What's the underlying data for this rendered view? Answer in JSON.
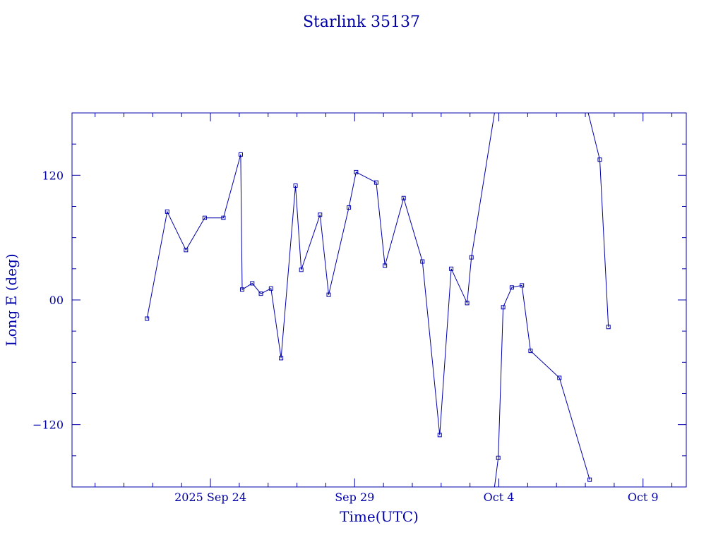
{
  "chart_data": {
    "type": "line",
    "title": "Starlink 35137",
    "xlabel": "Time(UTC)",
    "ylabel": "Long E (deg)",
    "color": "#0000aa",
    "x_unit": "days (2025 Sep 24 = 0)",
    "xlim": [
      -4.8,
      16.5
    ],
    "ylim": [
      -180,
      180
    ],
    "x_ticks": [
      {
        "value": 0,
        "label": "2025 Sep 24"
      },
      {
        "value": 5,
        "label": "Sep 29"
      },
      {
        "value": 10,
        "label": "Oct  4"
      },
      {
        "value": 15,
        "label": "Oct  9"
      }
    ],
    "y_ticks": [
      {
        "value": 120,
        "label": "120"
      },
      {
        "value": 0,
        "label": "00"
      },
      {
        "value": -120,
        "label": "−120"
      }
    ],
    "x_minor_step": 1,
    "y_minor_step": 30,
    "grid": false,
    "segments": [
      [
        [
          -2.2,
          -18
        ],
        [
          -1.5,
          85
        ],
        [
          -0.85,
          48
        ],
        [
          -0.2,
          79
        ],
        [
          0.45,
          79
        ],
        [
          1.05,
          140
        ],
        [
          1.1,
          10
        ],
        [
          1.45,
          16
        ],
        [
          1.75,
          6
        ],
        [
          2.1,
          11
        ],
        [
          2.45,
          -56
        ],
        [
          2.95,
          110
        ],
        [
          3.15,
          29
        ],
        [
          3.8,
          82
        ],
        [
          4.1,
          5
        ],
        [
          4.8,
          89
        ],
        [
          5.05,
          123
        ],
        [
          5.75,
          113
        ],
        [
          6.05,
          33
        ],
        [
          6.7,
          98
        ],
        [
          7.35,
          37
        ],
        [
          7.95,
          -130
        ],
        [
          8.35,
          30
        ],
        [
          8.9,
          -3
        ],
        [
          9.05,
          41
        ],
        [
          9.85,
          180
        ]
      ],
      [
        [
          9.85,
          -180
        ],
        [
          9.98,
          -152
        ],
        [
          10.15,
          -7
        ],
        [
          10.45,
          12
        ],
        [
          10.8,
          14
        ],
        [
          11.1,
          -49
        ],
        [
          12.1,
          -75
        ],
        [
          13.15,
          -173
        ]
      ],
      [
        [
          13.1,
          180
        ],
        [
          13.5,
          135
        ],
        [
          13.8,
          -26
        ]
      ]
    ]
  }
}
